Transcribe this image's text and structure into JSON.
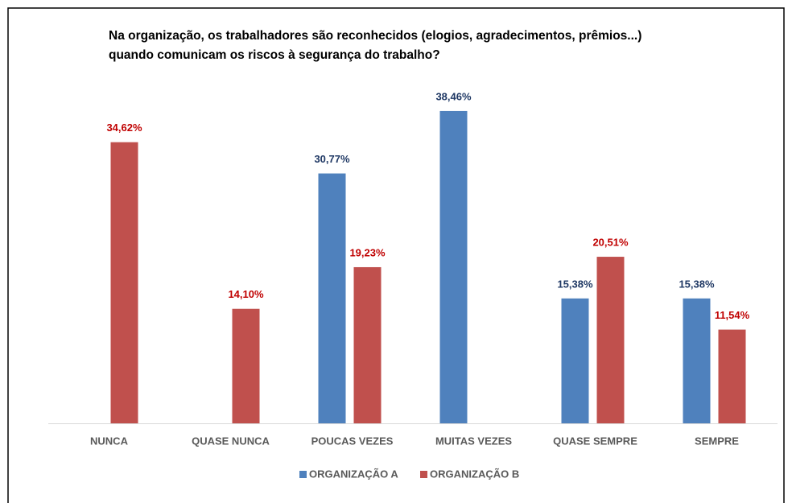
{
  "chart_data": {
    "type": "bar",
    "title": [
      "Na organização, os trabalhadores são reconhecidos (elogios, agradecimentos, prêmios...)",
      "quando comunicam os riscos à segurança do trabalho?"
    ],
    "categories": [
      "NUNCA",
      "QUASE NUNCA",
      "POUCAS VEZES",
      "MUITAS VEZES",
      "QUASE SEMPRE",
      "SEMPRE"
    ],
    "series": [
      {
        "name": "ORGANIZAÇÃO A",
        "color": "#4f81bd",
        "label_color": "#1f3864",
        "values": [
          null,
          null,
          30.77,
          38.46,
          15.38,
          15.38
        ],
        "value_labels": [
          null,
          null,
          "30,77%",
          "38,46%",
          "15,38%",
          "15,38%"
        ]
      },
      {
        "name": "ORGANIZAÇÃO B",
        "color": "#c0504d",
        "label_color": "#c00000",
        "values": [
          34.62,
          14.1,
          19.23,
          null,
          20.51,
          11.54
        ],
        "value_labels": [
          "34,62%",
          "14,10%",
          "19,23%",
          null,
          "20,51%",
          "11,54%"
        ]
      }
    ],
    "legend": "bottom"
  }
}
